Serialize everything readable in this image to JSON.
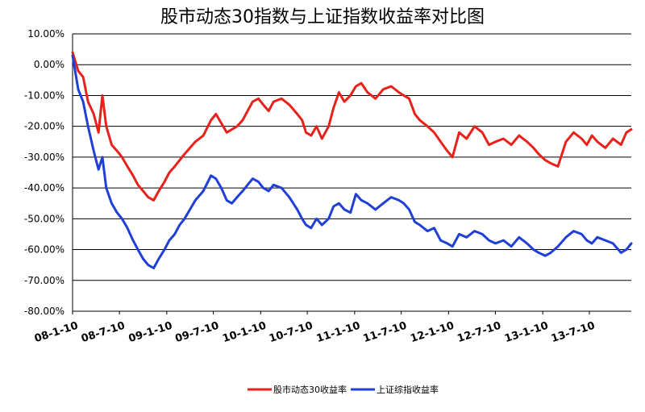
{
  "chart_data": {
    "type": "line",
    "title": "股市动态30指数与上证指数收益率对比图",
    "xlabel": "",
    "ylabel": "",
    "ylim": [
      -0.8,
      0.1
    ],
    "yticks": [
      0.1,
      0.0,
      -0.1,
      -0.2,
      -0.3,
      -0.4,
      -0.5,
      -0.6,
      -0.7,
      -0.8
    ],
    "ytick_labels": [
      "10.00%",
      "0.00%",
      "-10.00%",
      "-20.00%",
      "-30.00%",
      "-40.00%",
      "-50.00%",
      "-60.00%",
      "-70.00%",
      "-80.00%"
    ],
    "xlim": [
      "2008-01-10",
      "2013-12-20"
    ],
    "xticks": [
      "2008-01-10",
      "2008-07-10",
      "2009-01-10",
      "2009-07-10",
      "2010-01-10",
      "2010-07-10",
      "2011-01-10",
      "2011-07-10",
      "2012-01-10",
      "2012-07-10",
      "2013-01-10",
      "2013-07-10"
    ],
    "xtick_labels": [
      "08-1-10",
      "08-7-10",
      "09-1-10",
      "09-7-10",
      "10-1-10",
      "10-7-10",
      "11-1-10",
      "11-7-10",
      "12-1-10",
      "12-7-10",
      "13-1-10",
      "13-7-10"
    ],
    "grid": true,
    "legend_position": "bottom",
    "series": [
      {
        "name": "股市动态30收益率",
        "color": "#e8211b",
        "x": [
          "2008-01-10",
          "2008-02-01",
          "2008-02-20",
          "2008-03-10",
          "2008-04-01",
          "2008-04-20",
          "2008-05-05",
          "2008-05-20",
          "2008-06-10",
          "2008-07-01",
          "2008-07-20",
          "2008-08-10",
          "2008-09-01",
          "2008-09-20",
          "2008-10-10",
          "2008-10-30",
          "2008-11-20",
          "2008-12-10",
          "2009-01-01",
          "2009-01-20",
          "2009-02-10",
          "2009-03-01",
          "2009-03-20",
          "2009-04-10",
          "2009-05-01",
          "2009-06-01",
          "2009-07-01",
          "2009-07-20",
          "2009-08-10",
          "2009-08-31",
          "2009-09-20",
          "2009-10-10",
          "2009-11-01",
          "2009-11-20",
          "2009-12-10",
          "2010-01-01",
          "2010-01-20",
          "2010-02-10",
          "2010-03-01",
          "2010-04-01",
          "2010-05-01",
          "2010-06-01",
          "2010-06-20",
          "2010-07-05",
          "2010-07-25",
          "2010-08-15",
          "2010-09-05",
          "2010-10-01",
          "2010-10-20",
          "2010-11-10",
          "2010-12-01",
          "2010-12-25",
          "2011-01-15",
          "2011-02-05",
          "2011-03-01",
          "2011-04-01",
          "2011-05-01",
          "2011-06-01",
          "2011-07-01",
          "2011-07-20",
          "2011-08-10",
          "2011-09-01",
          "2011-09-20",
          "2011-10-20",
          "2011-11-15",
          "2011-12-10",
          "2012-01-05",
          "2012-01-25",
          "2012-02-20",
          "2012-03-20",
          "2012-04-20",
          "2012-05-20",
          "2012-06-15",
          "2012-07-10",
          "2012-08-10",
          "2012-09-10",
          "2012-10-10",
          "2012-11-10",
          "2012-12-05",
          "2012-12-25",
          "2013-01-20",
          "2013-02-10",
          "2013-03-10",
          "2013-04-10",
          "2013-05-10",
          "2013-06-10",
          "2013-06-30",
          "2013-07-20",
          "2013-08-10",
          "2013-09-10",
          "2013-10-10",
          "2013-11-10",
          "2013-12-01",
          "2013-12-20"
        ],
        "y": [
          0.04,
          -0.02,
          -0.04,
          -0.12,
          -0.16,
          -0.22,
          -0.1,
          -0.2,
          -0.26,
          -0.28,
          -0.3,
          -0.33,
          -0.36,
          -0.39,
          -0.41,
          -0.43,
          -0.44,
          -0.41,
          -0.38,
          -0.35,
          -0.33,
          -0.31,
          -0.29,
          -0.27,
          -0.25,
          -0.23,
          -0.18,
          -0.16,
          -0.19,
          -0.22,
          -0.21,
          -0.2,
          -0.18,
          -0.15,
          -0.12,
          -0.11,
          -0.13,
          -0.15,
          -0.12,
          -0.11,
          -0.13,
          -0.16,
          -0.18,
          -0.22,
          -0.23,
          -0.2,
          -0.24,
          -0.2,
          -0.14,
          -0.09,
          -0.12,
          -0.1,
          -0.07,
          -0.06,
          -0.09,
          -0.11,
          -0.08,
          -0.07,
          -0.09,
          -0.1,
          -0.11,
          -0.16,
          -0.18,
          -0.2,
          -0.22,
          -0.25,
          -0.28,
          -0.3,
          -0.22,
          -0.24,
          -0.2,
          -0.22,
          -0.26,
          -0.25,
          -0.24,
          -0.26,
          -0.23,
          -0.25,
          -0.27,
          -0.29,
          -0.31,
          -0.32,
          -0.33,
          -0.25,
          -0.22,
          -0.24,
          -0.26,
          -0.23,
          -0.25,
          -0.27,
          -0.24,
          -0.26,
          -0.22,
          -0.21
        ]
      },
      {
        "name": "上证综指收益率",
        "color": "#1f3fd6",
        "x": [
          "2008-01-10",
          "2008-02-01",
          "2008-02-20",
          "2008-03-10",
          "2008-04-01",
          "2008-04-20",
          "2008-05-05",
          "2008-05-20",
          "2008-06-10",
          "2008-07-01",
          "2008-07-20",
          "2008-08-10",
          "2008-09-01",
          "2008-09-20",
          "2008-10-10",
          "2008-10-30",
          "2008-11-20",
          "2008-12-10",
          "2009-01-01",
          "2009-01-20",
          "2009-02-10",
          "2009-03-01",
          "2009-03-20",
          "2009-04-10",
          "2009-05-01",
          "2009-06-01",
          "2009-07-01",
          "2009-07-20",
          "2009-08-10",
          "2009-08-31",
          "2009-09-20",
          "2009-10-10",
          "2009-11-01",
          "2009-11-20",
          "2009-12-10",
          "2010-01-01",
          "2010-01-20",
          "2010-02-10",
          "2010-03-01",
          "2010-04-01",
          "2010-05-01",
          "2010-06-01",
          "2010-06-20",
          "2010-07-05",
          "2010-07-25",
          "2010-08-15",
          "2010-09-05",
          "2010-10-01",
          "2010-10-20",
          "2010-11-10",
          "2010-12-01",
          "2010-12-25",
          "2011-01-15",
          "2011-02-05",
          "2011-03-01",
          "2011-04-01",
          "2011-05-01",
          "2011-06-01",
          "2011-07-01",
          "2011-07-20",
          "2011-08-10",
          "2011-09-01",
          "2011-09-20",
          "2011-10-20",
          "2011-11-15",
          "2011-12-10",
          "2012-01-05",
          "2012-01-25",
          "2012-02-20",
          "2012-03-20",
          "2012-04-20",
          "2012-05-20",
          "2012-06-15",
          "2012-07-10",
          "2012-08-10",
          "2012-09-10",
          "2012-10-10",
          "2012-11-10",
          "2012-12-05",
          "2012-12-25",
          "2013-01-20",
          "2013-02-10",
          "2013-03-10",
          "2013-04-10",
          "2013-05-10",
          "2013-06-10",
          "2013-06-30",
          "2013-07-20",
          "2013-08-10",
          "2013-09-10",
          "2013-10-10",
          "2013-11-10",
          "2013-12-01",
          "2013-12-20"
        ],
        "y": [
          0.03,
          -0.08,
          -0.12,
          -0.2,
          -0.28,
          -0.34,
          -0.3,
          -0.4,
          -0.45,
          -0.48,
          -0.5,
          -0.53,
          -0.57,
          -0.6,
          -0.63,
          -0.65,
          -0.66,
          -0.63,
          -0.6,
          -0.57,
          -0.55,
          -0.52,
          -0.5,
          -0.47,
          -0.44,
          -0.41,
          -0.36,
          -0.37,
          -0.4,
          -0.44,
          -0.45,
          -0.43,
          -0.41,
          -0.39,
          -0.37,
          -0.38,
          -0.4,
          -0.41,
          -0.39,
          -0.4,
          -0.43,
          -0.47,
          -0.5,
          -0.52,
          -0.53,
          -0.5,
          -0.52,
          -0.5,
          -0.46,
          -0.45,
          -0.47,
          -0.48,
          -0.42,
          -0.44,
          -0.45,
          -0.47,
          -0.45,
          -0.43,
          -0.44,
          -0.45,
          -0.47,
          -0.51,
          -0.52,
          -0.54,
          -0.53,
          -0.57,
          -0.58,
          -0.59,
          -0.55,
          -0.56,
          -0.54,
          -0.55,
          -0.57,
          -0.58,
          -0.57,
          -0.59,
          -0.56,
          -0.58,
          -0.6,
          -0.61,
          -0.62,
          -0.61,
          -0.59,
          -0.56,
          -0.54,
          -0.55,
          -0.57,
          -0.58,
          -0.56,
          -0.57,
          -0.58,
          -0.61,
          -0.6,
          -0.58
        ]
      }
    ]
  }
}
